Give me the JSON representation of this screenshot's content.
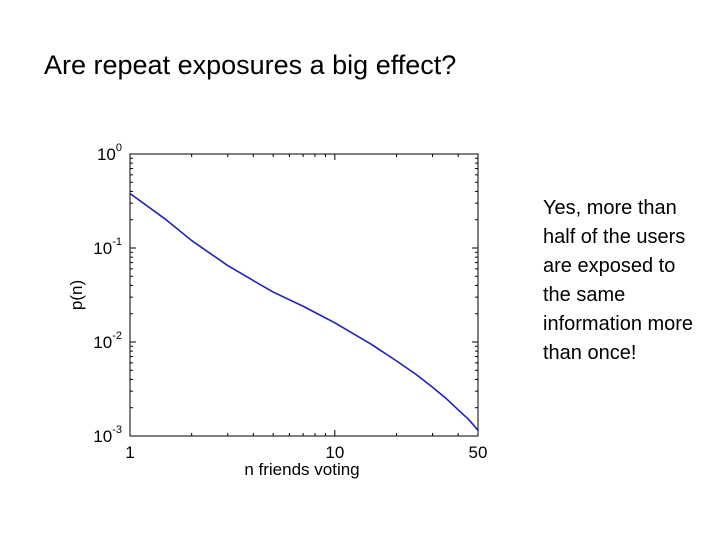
{
  "slide": {
    "title": "Are repeat exposures a big effect?",
    "note": "Yes, more than half of the users are exposed to the same information more than once!"
  },
  "chart_data": {
    "type": "line",
    "title": "",
    "xlabel": "n friends voting",
    "ylabel": "p(n)",
    "x_scale": "log",
    "y_scale": "log",
    "xlim": [
      1,
      50
    ],
    "ylim": [
      0.001,
      1
    ],
    "x_ticks": [
      1,
      10,
      50
    ],
    "x_tick_labels": [
      "1",
      "10",
      "50"
    ],
    "y_ticks": [
      0.001,
      0.01,
      0.1,
      1
    ],
    "y_tick_labels": [
      {
        "base": "10",
        "exp": "-3"
      },
      {
        "base": "10",
        "exp": "-2"
      },
      {
        "base": "10",
        "exp": "-1"
      },
      {
        "base": "10",
        "exp": "0"
      }
    ],
    "grid": false,
    "line_color": "#1f1fbf",
    "series": [
      {
        "x": [
          1,
          1.5,
          2,
          3,
          4,
          5,
          7,
          10,
          15,
          20,
          25,
          30,
          35,
          40,
          45,
          50
        ],
        "y": [
          0.38,
          0.2,
          0.12,
          0.065,
          0.045,
          0.034,
          0.024,
          0.016,
          0.0095,
          0.0063,
          0.0045,
          0.0033,
          0.0025,
          0.0019,
          0.0015,
          0.00115
        ]
      }
    ]
  }
}
